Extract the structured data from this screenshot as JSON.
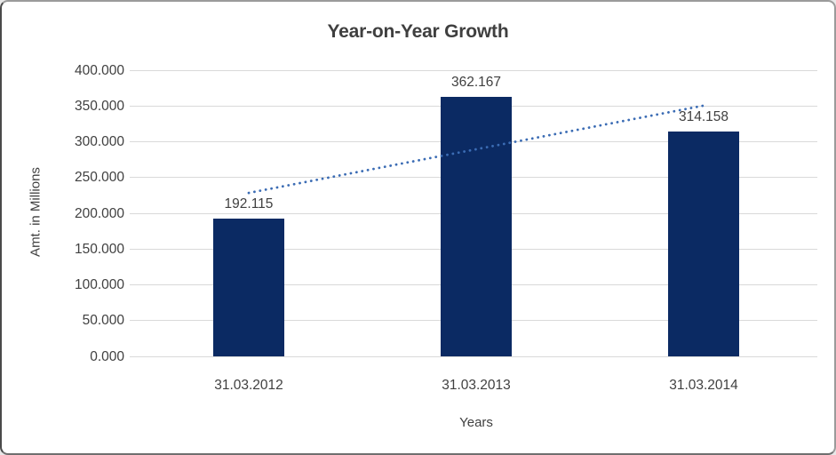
{
  "chart_data": {
    "type": "bar",
    "title": "Year-on-Year Growth",
    "categories": [
      "31.03.2012",
      "31.03.2013",
      "31.03.2014"
    ],
    "values": [
      192.115,
      362.167,
      314.158
    ],
    "value_labels": [
      "192.115",
      "362.167",
      "314.158"
    ],
    "xlabel": "Years",
    "ylabel": "Amt. in Millions",
    "ylim": [
      0,
      400
    ],
    "ytick_step": 50,
    "ytick_labels": [
      "400.000",
      "350.000",
      "300.000",
      "250.000",
      "200.000",
      "150.000",
      "100.000",
      "50.000",
      "0.000"
    ],
    "grid": true,
    "legend": "none",
    "trendline": {
      "type": "linear",
      "style": "dotted"
    },
    "colors": {
      "bar": "#0B2A63",
      "trendline": "#3B6CB4",
      "gridline": "#D9D9D9",
      "text": "#404040",
      "title": "#3F3F3F"
    }
  }
}
